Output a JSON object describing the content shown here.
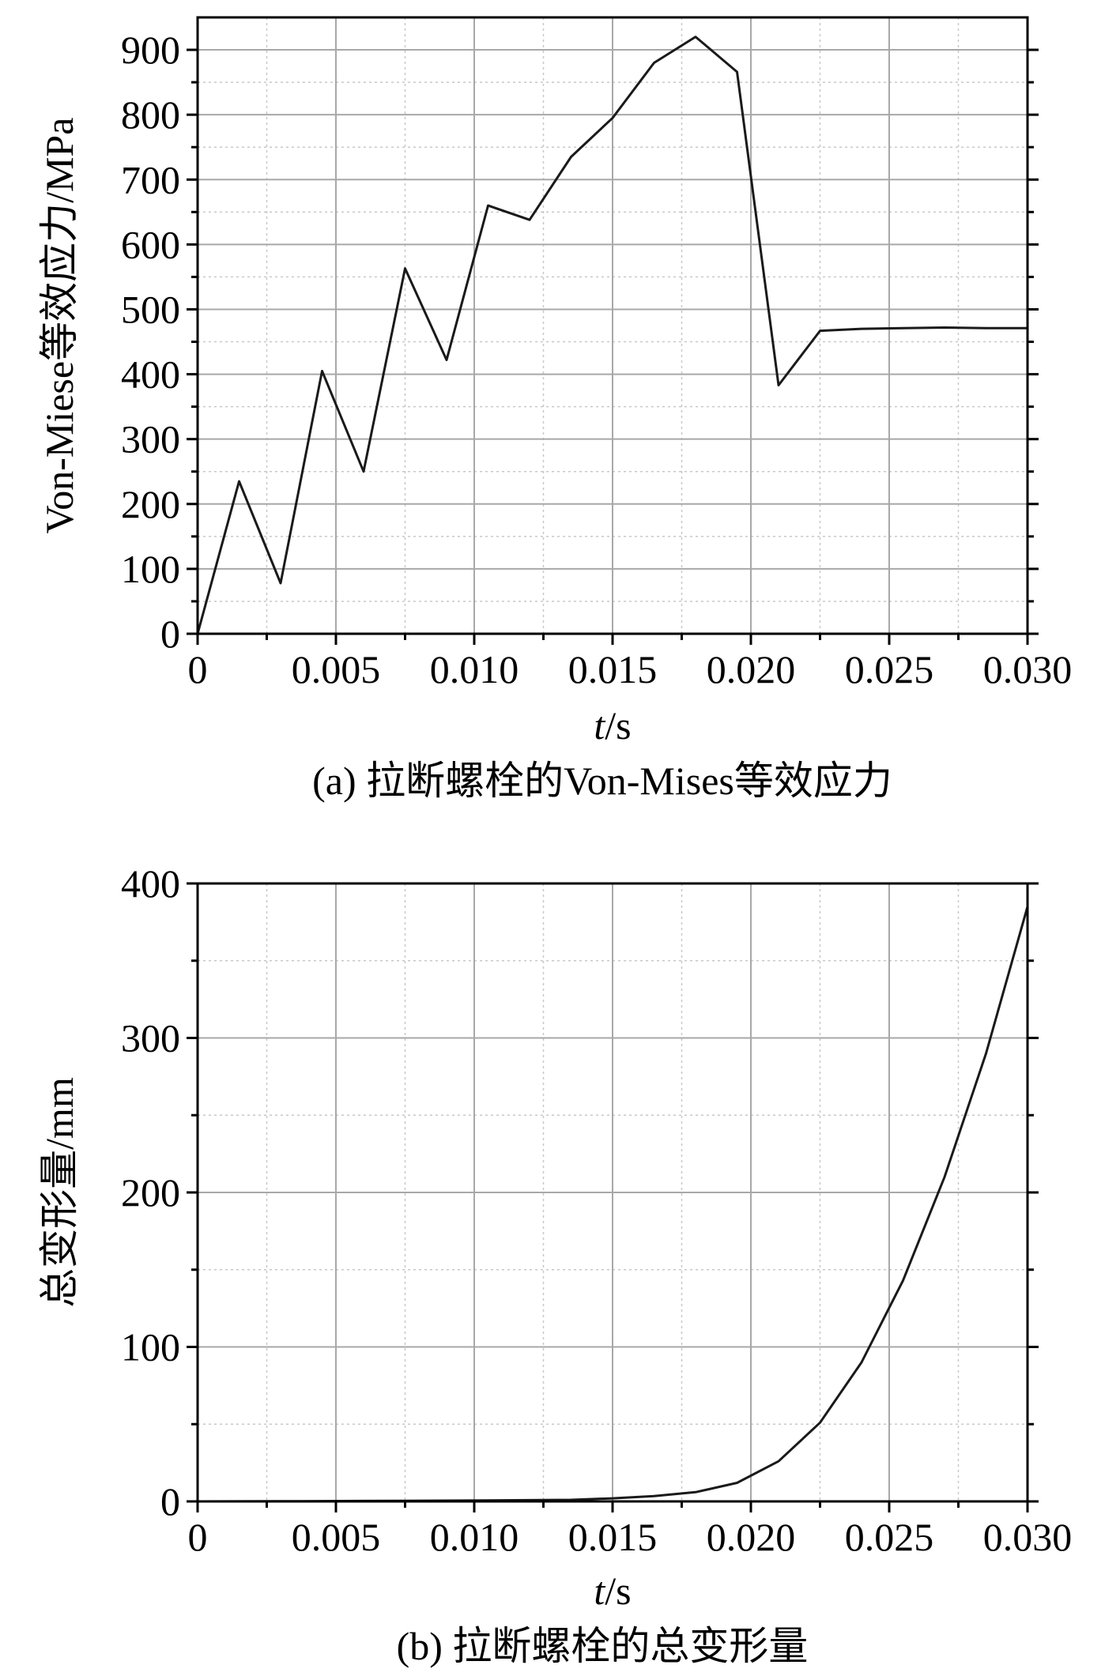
{
  "chart_data": [
    {
      "type": "line",
      "caption": "(a) 拉断螺栓的Von-Mises等效应力",
      "xlabel_var": "t",
      "xlabel_unit": "/s",
      "ylabel": "Von-Miese等效应力/MPa",
      "xlim": [
        0,
        0.03
      ],
      "ylim": [
        0,
        950
      ],
      "xticks": [
        0,
        0.005,
        0.01,
        0.015,
        0.02,
        0.025,
        0.03
      ],
      "xtick_labels": [
        "0",
        "0.005",
        "0.010",
        "0.015",
        "0.020",
        "0.025",
        "0.030"
      ],
      "yticks": [
        0,
        100,
        200,
        300,
        400,
        500,
        600,
        700,
        800,
        900
      ],
      "ytick_labels": [
        "0",
        "100",
        "200",
        "300",
        "400",
        "500",
        "600",
        "700",
        "800",
        "900"
      ],
      "grid": true,
      "series": [
        {
          "x": [
            0,
            0.0015,
            0.003,
            0.0045,
            0.006,
            0.0075,
            0.009,
            0.0105,
            0.012,
            0.0135,
            0.015,
            0.0165,
            0.018,
            0.0195,
            0.021,
            0.0225,
            0.024,
            0.0255,
            0.027,
            0.0285,
            0.03
          ],
          "y": [
            0,
            235,
            78,
            405,
            250,
            563,
            422,
            660,
            638,
            735,
            795,
            880,
            920,
            866,
            383,
            467,
            470,
            471,
            472,
            471,
            471
          ]
        }
      ]
    },
    {
      "type": "line",
      "caption": "(b) 拉断螺栓的总变形量",
      "xlabel_var": "t",
      "xlabel_unit": "/s",
      "ylabel": "总变形量/mm",
      "xlim": [
        0,
        0.03
      ],
      "ylim": [
        0,
        400
      ],
      "xticks": [
        0,
        0.005,
        0.01,
        0.015,
        0.02,
        0.025,
        0.03
      ],
      "xtick_labels": [
        "0",
        "0.005",
        "0.010",
        "0.015",
        "0.020",
        "0.025",
        "0.030"
      ],
      "yticks": [
        0,
        100,
        200,
        300,
        400
      ],
      "ytick_labels": [
        "0",
        "100",
        "200",
        "300",
        "400"
      ],
      "grid": true,
      "series": [
        {
          "x": [
            0,
            0.0015,
            0.003,
            0.0045,
            0.006,
            0.0075,
            0.009,
            0.0105,
            0.012,
            0.0135,
            0.015,
            0.0165,
            0.018,
            0.0195,
            0.021,
            0.0225,
            0.024,
            0.0255,
            0.027,
            0.0285,
            0.03
          ],
          "y": [
            0,
            0.05,
            0.1,
            0.2,
            0.3,
            0.4,
            0.5,
            0.6,
            0.8,
            1.0,
            2.0,
            3.5,
            6,
            12,
            26,
            51,
            90,
            143,
            210,
            290,
            385
          ]
        }
      ]
    }
  ]
}
